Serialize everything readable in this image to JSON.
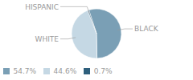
{
  "chart_data": {
    "type": "pie",
    "categories": [
      "BLACK",
      "WHITE",
      "HISPANIC"
    ],
    "values": [
      54.7,
      44.6,
      0.7
    ],
    "value_labels": [
      "54.7%",
      "44.6%",
      "0.7%"
    ],
    "colors": [
      "#7a9fb5",
      "#c5d8e4",
      "#2e5f7c"
    ],
    "legend": "lower left"
  }
}
